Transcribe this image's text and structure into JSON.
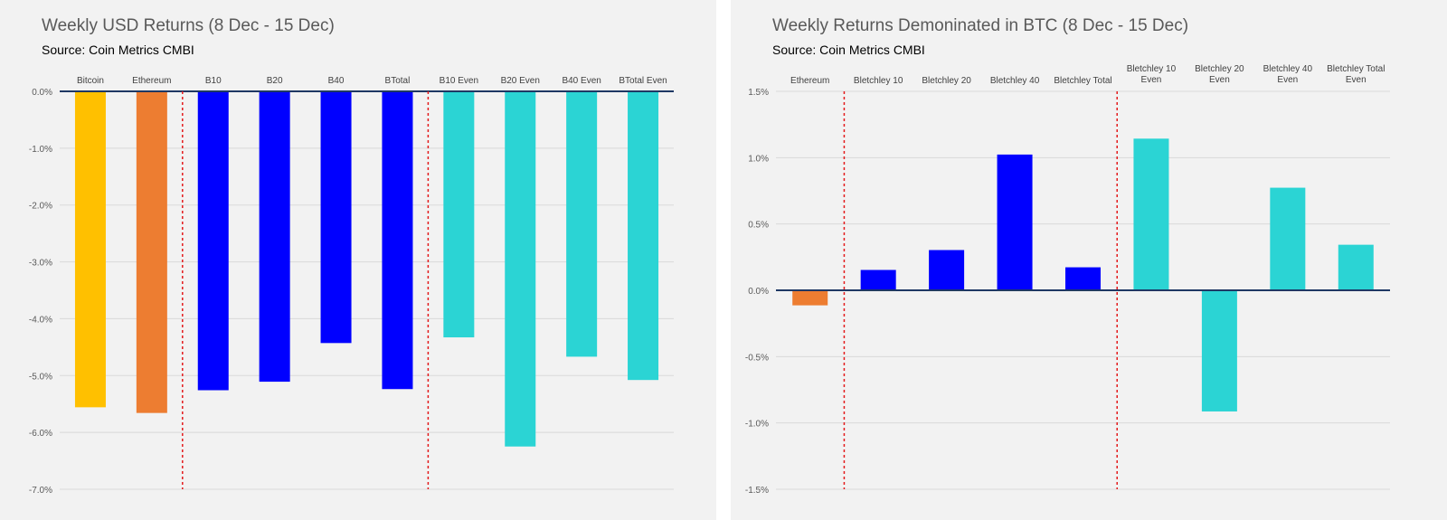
{
  "charts": [
    {
      "title": "Weekly USD Returns (8 Dec - 15 Dec)",
      "source": "Source: Coin Metrics CMBI",
      "colors": {
        "bitcoin": "#ffc000",
        "ethereum": "#ed7d31",
        "index": "#0000ff",
        "even": "#2bd4d4",
        "divider": "#e31a1c",
        "zero_line": "#1f3864",
        "grid": "#d9d9d9"
      }
    },
    {
      "title": "Weekly Returns Demoninated in BTC (8 Dec - 15 Dec)",
      "source": "Source: Coin Metrics CMBI",
      "colors": {
        "ethereum": "#ed7d31",
        "index": "#0000ff",
        "even": "#2bd4d4",
        "divider": "#e31a1c",
        "zero_line": "#1f3864",
        "grid": "#d9d9d9"
      }
    }
  ],
  "chart_data": [
    {
      "type": "bar",
      "title": "Weekly USD Returns (8 Dec - 15 Dec)",
      "subtitle": "Source: Coin Metrics CMBI",
      "categories": [
        "Bitcoin",
        "Ethereum",
        "B10",
        "B20",
        "B40",
        "BTotal",
        "B10 Even",
        "B20 Even",
        "B40 Even",
        "BTotal Even"
      ],
      "values": [
        -5.55,
        -5.65,
        -5.25,
        -5.1,
        -4.42,
        -5.23,
        -4.32,
        -6.24,
        -4.66,
        -5.07
      ],
      "bar_color_groups": [
        "bitcoin",
        "ethereum",
        "index",
        "index",
        "index",
        "index",
        "even",
        "even",
        "even",
        "even"
      ],
      "ylim": [
        -7.0,
        0.0
      ],
      "yticks": [
        0,
        -1,
        -2,
        -3,
        -4,
        -5,
        -6,
        -7
      ],
      "ytick_labels": [
        "0.0%",
        "-1.0%",
        "-2.0%",
        "-3.0%",
        "-4.0%",
        "-5.0%",
        "-6.0%",
        "-7.0%"
      ],
      "category_labels_position": "top",
      "divider_after_category": [
        1,
        5
      ],
      "grid": true,
      "xlabel": "",
      "ylabel": ""
    },
    {
      "type": "bar",
      "title": "Weekly Returns Demoninated in BTC (8 Dec - 15 Dec)",
      "subtitle": "Source: Coin Metrics CMBI",
      "categories": [
        "Ethereum",
        "Bletchley 10",
        "Bletchley 20",
        "Bletchley 40",
        "Bletchley Total",
        "Bletchley 10 Even",
        "Bletchley 20 Even",
        "Bletchley 40 Even",
        "Bletchley Total Even"
      ],
      "category_label_lines": [
        [
          "Ethereum"
        ],
        [
          "Bletchley 10"
        ],
        [
          "Bletchley 20"
        ],
        [
          "Bletchley 40"
        ],
        [
          "Bletchley Total"
        ],
        [
          "Bletchley 10",
          "Even"
        ],
        [
          "Bletchley 20",
          "Even"
        ],
        [
          "Bletchley 40",
          "Even"
        ],
        [
          "Bletchley Total",
          "Even"
        ]
      ],
      "values": [
        -0.11,
        0.15,
        0.3,
        1.02,
        0.17,
        1.14,
        -0.91,
        0.77,
        0.34
      ],
      "bar_color_groups": [
        "ethereum",
        "index",
        "index",
        "index",
        "index",
        "even",
        "even",
        "even",
        "even"
      ],
      "ylim": [
        -1.5,
        1.5
      ],
      "yticks": [
        1.5,
        1.0,
        0.5,
        0.0,
        -0.5,
        -1.0,
        -1.5
      ],
      "ytick_labels": [
        "1.5%",
        "1.0%",
        "0.5%",
        "0.0%",
        "-0.5%",
        "-1.0%",
        "-1.5%"
      ],
      "category_labels_position": "top",
      "divider_after_category": [
        0,
        4
      ],
      "grid": true,
      "xlabel": "",
      "ylabel": ""
    }
  ]
}
